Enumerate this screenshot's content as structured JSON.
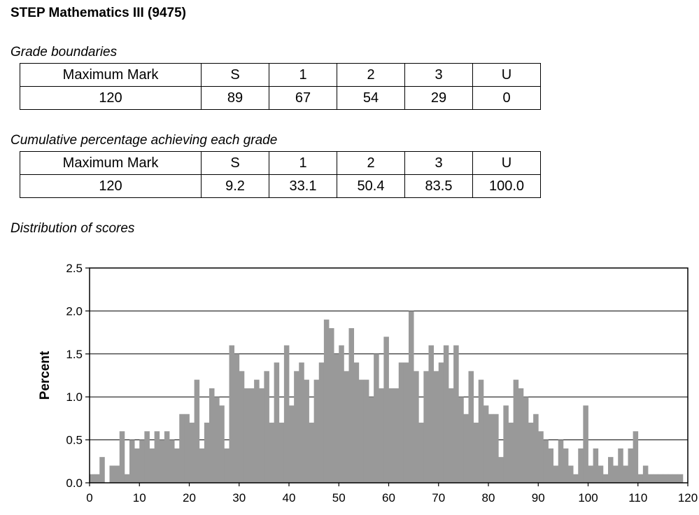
{
  "page_title": "STEP Mathematics III (9475)",
  "grade_boundaries": {
    "heading": "Grade boundaries",
    "header": [
      "Maximum Mark",
      "S",
      "1",
      "2",
      "3",
      "U"
    ],
    "row": [
      "120",
      "89",
      "67",
      "54",
      "29",
      "0"
    ]
  },
  "cumulative": {
    "heading": "Cumulative percentage achieving each grade",
    "header": [
      "Maximum Mark",
      "S",
      "1",
      "2",
      "3",
      "U"
    ],
    "row": [
      "120",
      "9.2",
      "33.1",
      "50.4",
      "83.5",
      "100.0"
    ]
  },
  "distribution_heading": "Distribution of scores",
  "chart_data": {
    "type": "bar",
    "ylabel": "Percent",
    "xlabel": "",
    "xlim": [
      0,
      120
    ],
    "ylim": [
      0,
      2.5
    ],
    "x_ticks": [
      0,
      10,
      20,
      30,
      40,
      50,
      60,
      70,
      80,
      90,
      100,
      110,
      120
    ],
    "y_ticks": [
      "0.0",
      "0.5",
      "1.0",
      "1.5",
      "2.0",
      "2.5"
    ],
    "grid": "horizontal",
    "bar_color": "#999999",
    "x": [
      0,
      1,
      2,
      3,
      4,
      5,
      6,
      7,
      8,
      9,
      10,
      11,
      12,
      13,
      14,
      15,
      16,
      17,
      18,
      19,
      20,
      21,
      22,
      23,
      24,
      25,
      26,
      27,
      28,
      29,
      30,
      31,
      32,
      33,
      34,
      35,
      36,
      37,
      38,
      39,
      40,
      41,
      42,
      43,
      44,
      45,
      46,
      47,
      48,
      49,
      50,
      51,
      52,
      53,
      54,
      55,
      56,
      57,
      58,
      59,
      60,
      61,
      62,
      63,
      64,
      65,
      66,
      67,
      68,
      69,
      70,
      71,
      72,
      73,
      74,
      75,
      76,
      77,
      78,
      79,
      80,
      81,
      82,
      83,
      84,
      85,
      86,
      87,
      88,
      89,
      90,
      91,
      92,
      93,
      94,
      95,
      96,
      97,
      98,
      99,
      100,
      101,
      102,
      103,
      104,
      105,
      106,
      107,
      108,
      109,
      110,
      111,
      112,
      113,
      114,
      115,
      116,
      117,
      118,
      119,
      120
    ],
    "values": [
      0.1,
      0.1,
      0.3,
      0,
      0.2,
      0.2,
      0.6,
      0.1,
      0.5,
      0.4,
      0.5,
      0.6,
      0.4,
      0.6,
      0.5,
      0.6,
      0.5,
      0.4,
      0.8,
      0.8,
      0.7,
      1.2,
      0.4,
      0.7,
      1.1,
      1.0,
      0.9,
      0.4,
      1.6,
      1.5,
      1.3,
      1.1,
      1.1,
      1.2,
      1.1,
      1.3,
      0.7,
      1.4,
      0.7,
      1.6,
      0.9,
      1.3,
      1.4,
      1.2,
      0.7,
      1.2,
      1.4,
      1.9,
      1.8,
      1.5,
      1.6,
      1.3,
      1.8,
      1.4,
      1.2,
      1.2,
      1.0,
      1.5,
      1.1,
      1.7,
      1.1,
      1.1,
      1.4,
      1.4,
      2.0,
      1.3,
      0.7,
      1.3,
      1.6,
      1.3,
      1.4,
      1.6,
      1.1,
      1.6,
      1.0,
      0.8,
      1.3,
      0.7,
      1.2,
      0.9,
      0.8,
      0.8,
      0.3,
      0.9,
      0.7,
      1.2,
      1.1,
      1.0,
      0.7,
      0.8,
      0.6,
      0.5,
      0.4,
      0.2,
      0.5,
      0.4,
      0.2,
      0.1,
      0.4,
      0.9,
      0.2,
      0.4,
      0.2,
      0.1,
      0.3,
      0.2,
      0.4,
      0.2,
      0.4,
      0.6,
      0.1,
      0.2,
      0.1,
      0.1,
      0.1,
      0.1,
      0.1,
      0.1,
      0.1,
      0,
      0
    ]
  }
}
